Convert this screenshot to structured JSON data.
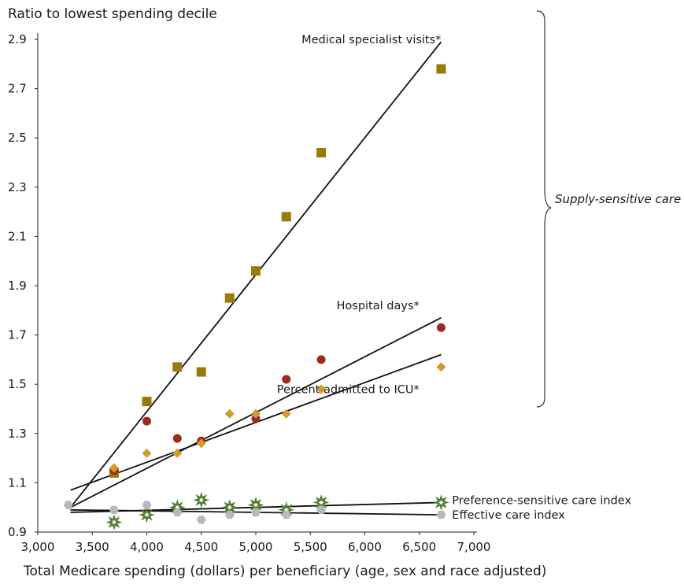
{
  "chart_data": {
    "type": "scatter",
    "title": "",
    "ylabel": "Ratio to lowest spending decile",
    "xlabel": "Total Medicare spending (dollars) per beneficiary (age, sex and race adjusted)",
    "xlim": [
      3000,
      7000
    ],
    "ylim": [
      0.9,
      2.9
    ],
    "x_ticks": [
      "3,000",
      "3,500",
      "4,000",
      "4,500",
      "5,000",
      "5,500",
      "6,000",
      "6,500",
      "7,000"
    ],
    "x_tick_values": [
      3000,
      3500,
      4000,
      4500,
      5000,
      5500,
      6000,
      6500,
      7000
    ],
    "y_ticks": [
      "0.9",
      "1.1",
      "1.3",
      "1.5",
      "1.7",
      "1.9",
      "2.1",
      "2.3",
      "2.5",
      "2.7",
      "2.9"
    ],
    "y_tick_values": [
      0.9,
      1.1,
      1.3,
      1.5,
      1.7,
      1.9,
      2.1,
      2.3,
      2.5,
      2.7,
      2.9
    ],
    "bracket_label": "Supply-sensitive care",
    "series": [
      {
        "name": "Medical specialist visits*",
        "marker": "square",
        "color": "#9a7b0a",
        "x": [
          3700,
          4000,
          4280,
          4500,
          4760,
          5000,
          5280,
          5600,
          6700
        ],
        "y": [
          1.14,
          1.43,
          1.57,
          1.55,
          1.85,
          1.96,
          2.18,
          2.44,
          2.78
        ],
        "trend": {
          "x": [
            3300,
            6700
          ],
          "y": [
            1.0,
            2.89
          ]
        },
        "label_pos": {
          "x": 6700,
          "y": 2.9
        }
      },
      {
        "name": "Hospital days*",
        "marker": "circle",
        "color": "#9b2a1f",
        "x": [
          3700,
          4000,
          4280,
          4500,
          5000,
          5280,
          5600,
          6700
        ],
        "y": [
          1.15,
          1.35,
          1.28,
          1.27,
          1.36,
          1.52,
          1.6,
          1.73
        ],
        "trend": {
          "x": [
            3300,
            6700
          ],
          "y": [
            1.0,
            1.77
          ]
        },
        "label_pos": {
          "x": 6500,
          "y": 1.82
        }
      },
      {
        "name": "Percent admitted to ICU*",
        "marker": "diamond",
        "color": "#d49a2a",
        "x": [
          3700,
          4000,
          4280,
          4500,
          4760,
          5000,
          5280,
          5600,
          6700
        ],
        "y": [
          1.16,
          1.22,
          1.22,
          1.26,
          1.38,
          1.38,
          1.38,
          1.48,
          1.57
        ],
        "trend": {
          "x": [
            3300,
            6700
          ],
          "y": [
            1.07,
            1.62
          ]
        },
        "label_pos": {
          "x": 6500,
          "y": 1.48
        }
      },
      {
        "name": "Preference-sensitive care index",
        "marker": "star",
        "color": "#4e7a2f",
        "x": [
          3700,
          4000,
          4280,
          4500,
          4760,
          5000,
          5280,
          5600,
          6700
        ],
        "y": [
          0.94,
          0.97,
          1.0,
          1.03,
          1.0,
          1.01,
          0.99,
          1.02,
          1.02
        ],
        "trend": {
          "x": [
            3300,
            6700
          ],
          "y": [
            0.98,
            1.02
          ]
        },
        "label_pos": {
          "x": 6800,
          "y": 1.03
        }
      },
      {
        "name": "Effective care index",
        "marker": "hexagon",
        "color": "#b6b8bc",
        "x": [
          3280,
          3700,
          4000,
          4280,
          4500,
          4760,
          5000,
          5280,
          5600,
          6700
        ],
        "y": [
          1.01,
          0.99,
          1.01,
          0.98,
          0.95,
          0.97,
          0.98,
          0.97,
          0.99,
          0.97
        ],
        "trend": {
          "x": [
            3300,
            6700
          ],
          "y": [
            0.99,
            0.97
          ]
        },
        "label_pos": {
          "x": 6800,
          "y": 0.97
        }
      }
    ]
  }
}
